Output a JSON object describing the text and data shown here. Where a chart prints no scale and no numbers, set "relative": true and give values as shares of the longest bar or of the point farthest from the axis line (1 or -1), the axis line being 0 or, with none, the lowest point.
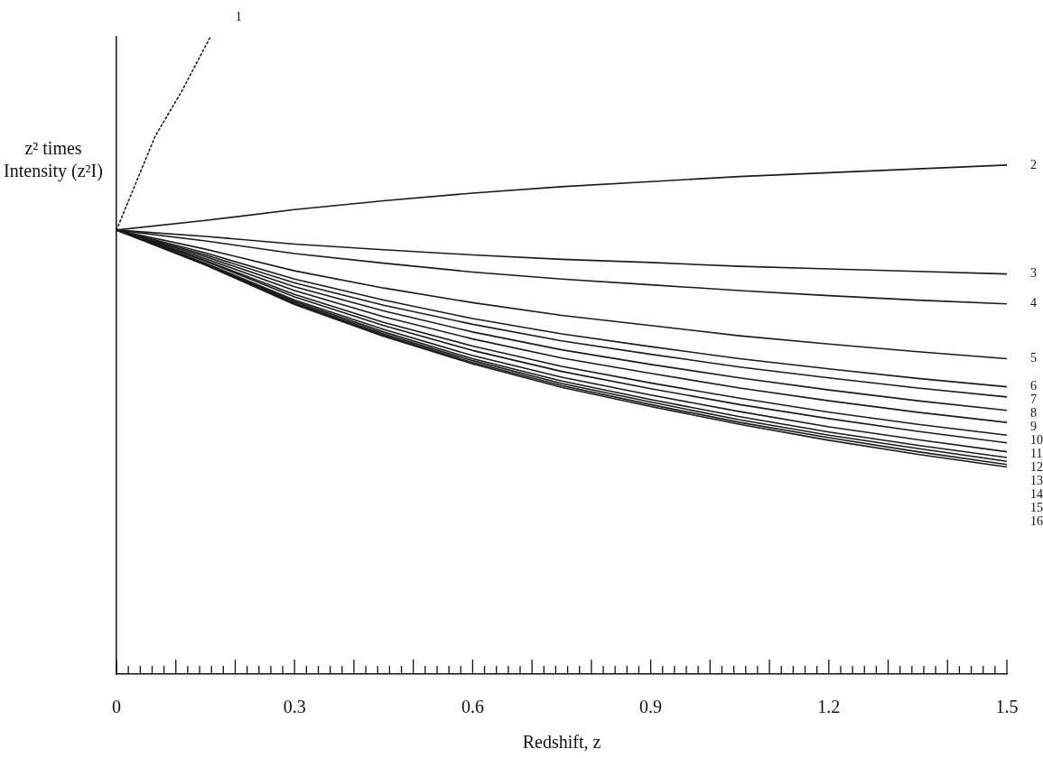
{
  "chart_data": {
    "type": "line",
    "relative": true,
    "xlabel": "Redshift, z",
    "ylabel": "z² times Intensity (z²I)",
    "x": [
      0,
      0.15,
      0.3,
      0.45,
      0.6,
      0.75,
      0.9,
      1.05,
      1.2,
      1.35,
      1.5
    ],
    "xlim": [
      0,
      1.5
    ],
    "xticks": [
      0,
      {
        "value": 0.02,
        "label": null
      },
      {
        "value": 0.04,
        "label": null
      },
      {
        "value": 0.06,
        "label": null
      },
      {
        "value": 0.08,
        "label": null
      },
      {
        "value": 0.1,
        "label": null
      },
      {
        "value": 0.12,
        "label": null
      },
      {
        "value": 0.14,
        "label": null
      },
      {
        "value": 0.16,
        "label": null
      },
      {
        "value": 0.18,
        "label": null
      },
      {
        "value": 0.2,
        "label": null
      },
      {
        "value": 0.22,
        "label": null
      },
      {
        "value": 0.24,
        "label": null
      },
      {
        "value": 0.26,
        "label": null
      },
      {
        "value": 0.28,
        "label": null
      },
      0.3,
      {
        "value": 0.32,
        "label": null
      },
      {
        "value": 0.34,
        "label": null
      },
      {
        "value": 0.36,
        "label": null
      },
      {
        "value": 0.38,
        "label": null
      },
      {
        "value": 0.4,
        "label": null
      },
      {
        "value": 0.42,
        "label": null
      },
      {
        "value": 0.44,
        "label": null
      },
      {
        "value": 0.46,
        "label": null
      },
      {
        "value": 0.48,
        "label": null
      },
      {
        "value": 0.5,
        "label": null
      },
      {
        "value": 0.52,
        "label": null
      },
      {
        "value": 0.54,
        "label": null
      },
      {
        "value": 0.56,
        "label": null
      },
      {
        "value": 0.58,
        "label": null
      },
      0.6,
      {
        "value": 0.62,
        "label": null
      },
      {
        "value": 0.64,
        "label": null
      },
      {
        "value": 0.66,
        "label": null
      },
      {
        "value": 0.68,
        "label": null
      },
      {
        "value": 0.7,
        "label": null
      },
      {
        "value": 0.72,
        "label": null
      },
      {
        "value": 0.74,
        "label": null
      },
      {
        "value": 0.76,
        "label": null
      },
      {
        "value": 0.78,
        "label": null
      },
      {
        "value": 0.8,
        "label": null
      },
      {
        "value": 0.82,
        "label": null
      },
      {
        "value": 0.84,
        "label": null
      },
      {
        "value": 0.86,
        "label": null
      },
      {
        "value": 0.88,
        "label": null
      },
      0.9,
      {
        "value": 0.92,
        "label": null
      },
      {
        "value": 0.94,
        "label": null
      },
      {
        "value": 0.96,
        "label": null
      },
      {
        "value": 0.98,
        "label": null
      },
      {
        "value": 1.0,
        "label": null
      },
      {
        "value": 1.02,
        "label": null
      },
      {
        "value": 1.04,
        "label": null
      },
      {
        "value": 1.06,
        "label": null
      },
      {
        "value": 1.08,
        "label": null
      },
      {
        "value": 1.1,
        "label": null
      },
      {
        "value": 1.12,
        "label": null
      },
      {
        "value": 1.14,
        "label": null
      },
      {
        "value": 1.16,
        "label": null
      },
      {
        "value": 1.18,
        "label": null
      },
      1.2,
      {
        "value": 1.22,
        "label": null
      },
      {
        "value": 1.24,
        "label": null
      },
      {
        "value": 1.26,
        "label": null
      },
      {
        "value": 1.28,
        "label": null
      },
      {
        "value": 1.3,
        "label": null
      },
      {
        "value": 1.32,
        "label": null
      },
      {
        "value": 1.34,
        "label": null
      },
      {
        "value": 1.36,
        "label": null
      },
      {
        "value": 1.38,
        "label": null
      },
      {
        "value": 1.4,
        "label": null
      },
      {
        "value": 1.42,
        "label": null
      },
      {
        "value": 1.44,
        "label": null
      },
      {
        "value": 1.46,
        "label": null
      },
      {
        "value": 1.48,
        "label": null
      },
      1.5
    ],
    "grid": false,
    "legend": false,
    "marker": "none",
    "line_style": "solid",
    "series": [
      {
        "name": "1",
        "color": "#1a1a1a",
        "line_style": "dotted",
        "x": [
          0,
          0.065,
          0.11,
          0.158
        ],
        "values": [
          0.697,
          0.844,
          0.915,
          1
        ]
      },
      {
        "name": "2",
        "color": "#1a1a1a",
        "values": [
          0.697,
          0.712,
          0.729,
          0.743,
          0.755,
          0.765,
          0.773,
          0.781,
          0.787,
          0.793,
          0.799
        ]
      },
      {
        "name": "3",
        "color": "#1a1a1a",
        "values": [
          0.697,
          0.687,
          0.675,
          0.666,
          0.658,
          0.651,
          0.646,
          0.64,
          0.636,
          0.632,
          0.628
        ]
      },
      {
        "name": "4",
        "color": "#1a1a1a",
        "values": [
          0.697,
          0.68,
          0.66,
          0.645,
          0.631,
          0.62,
          0.611,
          0.602,
          0.594,
          0.587,
          0.581
        ]
      },
      {
        "name": "5",
        "color": "#1a1a1a",
        "values": [
          0.697,
          0.667,
          0.633,
          0.606,
          0.583,
          0.563,
          0.547,
          0.531,
          0.518,
          0.506,
          0.495
        ]
      },
      {
        "name": "6",
        "color": "#1a1a1a",
        "values": [
          0.697,
          0.661,
          0.62,
          0.587,
          0.558,
          0.534,
          0.514,
          0.495,
          0.479,
          0.464,
          0.451
        ]
      },
      {
        "name": "7",
        "color": "#1a1a1a",
        "values": [
          0.697,
          0.658,
          0.614,
          0.579,
          0.549,
          0.523,
          0.502,
          0.482,
          0.465,
          0.449,
          0.435
        ]
      },
      {
        "name": "8",
        "color": "#1a1a1a",
        "values": [
          0.697,
          0.655,
          0.608,
          0.57,
          0.537,
          0.509,
          0.486,
          0.465,
          0.446,
          0.429,
          0.414
        ]
      },
      {
        "name": "9",
        "color": "#1a1a1a",
        "values": [
          0.697,
          0.652,
          0.602,
          0.561,
          0.526,
          0.496,
          0.472,
          0.449,
          0.429,
          0.411,
          0.395
        ]
      },
      {
        "name": "10",
        "color": "#1a1a1a",
        "values": [
          0.697,
          0.649,
          0.596,
          0.552,
          0.515,
          0.483,
          0.457,
          0.433,
          0.411,
          0.392,
          0.375
        ]
      },
      {
        "name": "11",
        "color": "#1a1a1a",
        "values": [
          0.697,
          0.648,
          0.592,
          0.547,
          0.508,
          0.475,
          0.448,
          0.423,
          0.401,
          0.381,
          0.363
        ]
      },
      {
        "name": "12",
        "color": "#1a1a1a",
        "values": [
          0.697,
          0.645,
          0.587,
          0.541,
          0.5,
          0.466,
          0.438,
          0.412,
          0.388,
          0.368,
          0.349
        ]
      },
      {
        "name": "13",
        "color": "#1a1a1a",
        "values": [
          0.697,
          0.644,
          0.585,
          0.537,
          0.495,
          0.46,
          0.431,
          0.404,
          0.38,
          0.359,
          0.34
        ]
      },
      {
        "name": "14",
        "color": "#1a1a1a",
        "values": [
          0.697,
          0.643,
          0.583,
          0.534,
          0.492,
          0.456,
          0.427,
          0.399,
          0.375,
          0.354,
          0.334
        ]
      },
      {
        "name": "15",
        "color": "#1a1a1a",
        "values": [
          0.697,
          0.643,
          0.581,
          0.532,
          0.489,
          0.453,
          0.423,
          0.395,
          0.371,
          0.349,
          0.329
        ]
      },
      {
        "name": "16",
        "color": "#1a1a1a",
        "values": [
          0.697,
          0.642,
          0.58,
          0.53,
          0.487,
          0.45,
          0.42,
          0.392,
          0.367,
          0.345,
          0.325
        ]
      }
    ]
  }
}
